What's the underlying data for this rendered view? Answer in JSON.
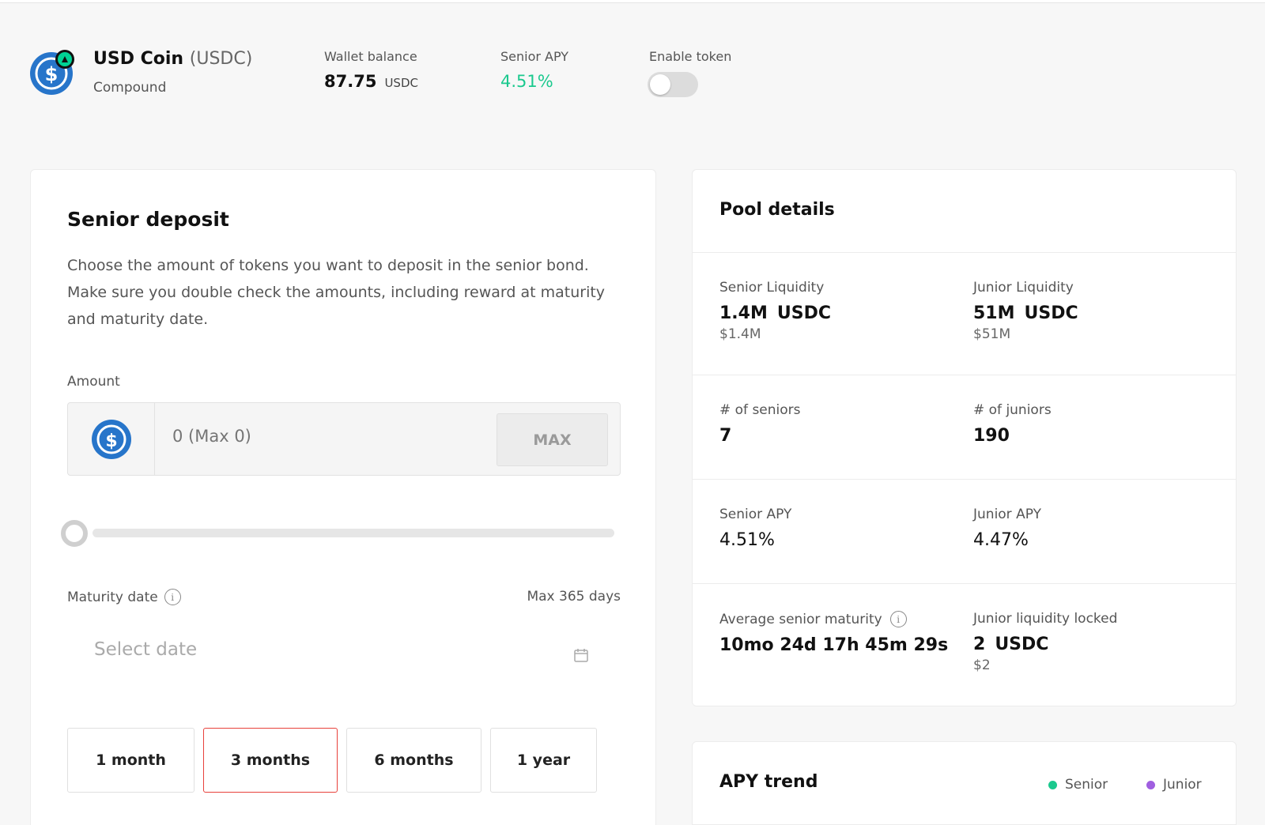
{
  "header": {
    "coin_name": "USD Coin",
    "coin_symbol": "(USDC)",
    "coin_source": "Compound",
    "wallet_balance_label": "Wallet balance",
    "wallet_balance_value": "87.75",
    "wallet_balance_unit": "USDC",
    "senior_apy_label": "Senior APY",
    "senior_apy_value": "4.51%",
    "enable_token_label": "Enable token",
    "enable_token_on": false
  },
  "deposit": {
    "title": "Senior deposit",
    "description": "Choose the amount of tokens you want to deposit in the senior bond. Make sure you double check the amounts, including reward at maturity and maturity date.",
    "amount_label": "Amount",
    "amount_placeholder": "0 (Max 0)",
    "max_label": "MAX",
    "slider_fraction": 0,
    "maturity_label": "Maturity date",
    "maturity_max": "Max 365 days",
    "date_placeholder": "Select date",
    "periods": [
      "1 month",
      "3 months",
      "6 months",
      "1 year"
    ],
    "selected_period": "3 months"
  },
  "pool": {
    "title": "Pool details",
    "senior_liquidity_label": "Senior Liquidity",
    "senior_liquidity_value": "1.4M",
    "senior_liquidity_unit": "USDC",
    "senior_liquidity_usd": "$1.4M",
    "junior_liquidity_label": "Junior Liquidity",
    "junior_liquidity_value": "51M",
    "junior_liquidity_unit": "USDC",
    "junior_liquidity_usd": "$51M",
    "seniors_label": "# of seniors",
    "seniors_value": "7",
    "juniors_label": "# of juniors",
    "juniors_value": "190",
    "senior_apy_label": "Senior APY",
    "senior_apy_value": "4.51%",
    "junior_apy_label": "Junior APY",
    "junior_apy_value": "4.47%",
    "avg_maturity_label": "Average senior maturity",
    "avg_maturity_value": "10mo 24d 17h 45m 29s",
    "junior_locked_label": "Junior liquidity locked",
    "junior_locked_value": "2",
    "junior_locked_unit": "USDC",
    "junior_locked_usd": "$2"
  },
  "trend": {
    "title": "APY trend",
    "legend_senior": "Senior",
    "legend_junior": "Junior"
  },
  "colors": {
    "senior": "#1bc98e",
    "junior": "#a05fe0",
    "usdc_blue": "#2775ca",
    "active_border": "#e8413b"
  },
  "icons": {
    "coin": "usdc-icon",
    "protocol_badge": "compound-icon",
    "info": "info-icon",
    "calendar": "calendar-icon"
  }
}
